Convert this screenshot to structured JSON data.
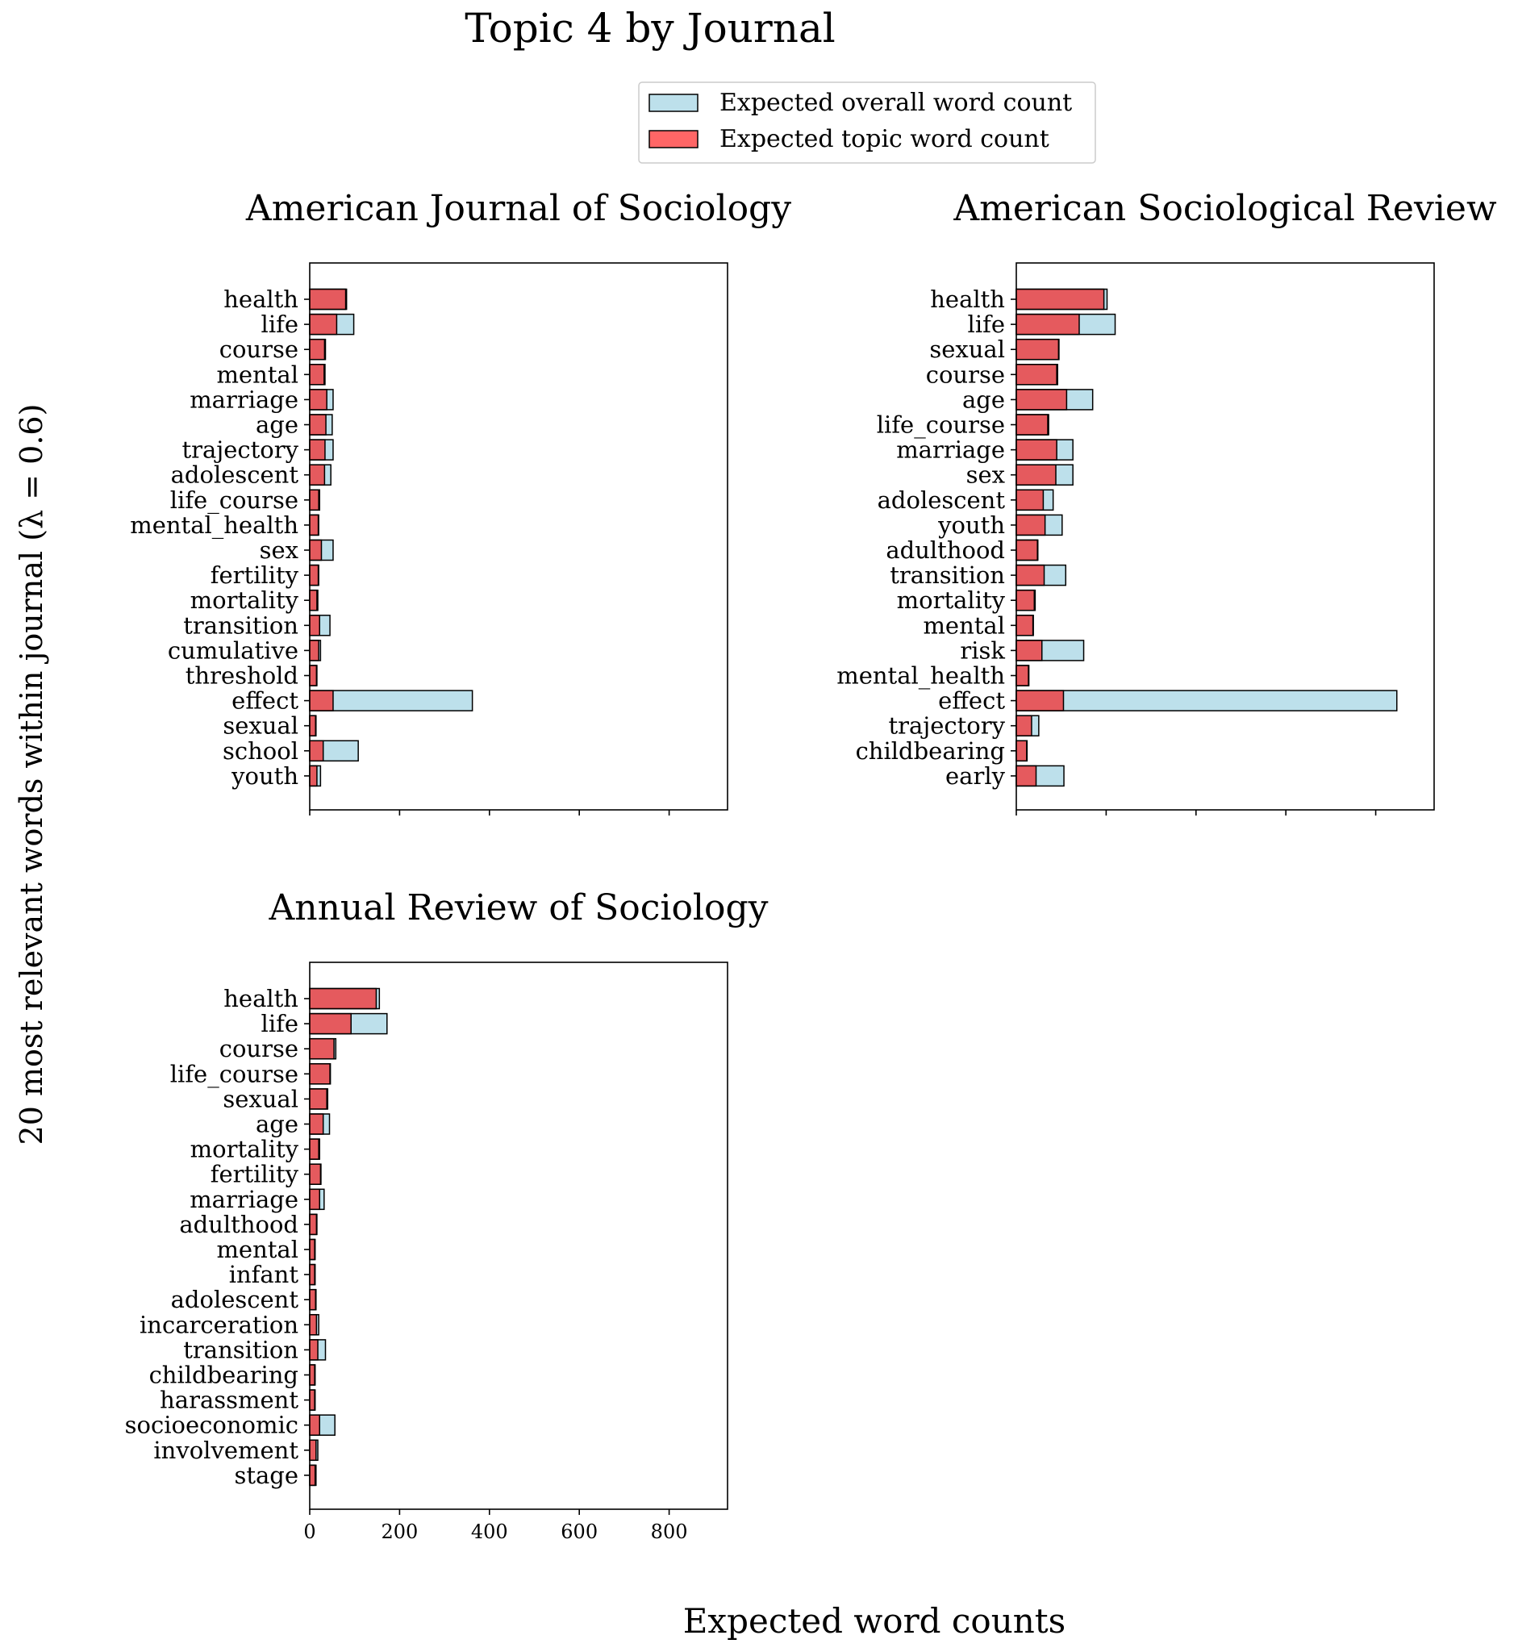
{
  "figure": {
    "title": "Topic 4 by Journal",
    "ylabel": "20 most relevant words within journal (λ =  0.6)",
    "xlabel": "Expected word counts",
    "legend": {
      "placement": "top-center",
      "items": [
        {
          "label": "Expected overall word count",
          "color": "#add8e6"
        },
        {
          "label": "Expected topic word count",
          "color": "#ff6666"
        }
      ]
    }
  },
  "chart_data": [
    {
      "type": "bar",
      "orientation": "horizontal",
      "title": "American Journal of Sociology",
      "xlim": [
        0,
        930
      ],
      "xticks": [
        0,
        200,
        400,
        600,
        800
      ],
      "show_xtick_labels": false,
      "categories": [
        "health",
        "life",
        "course",
        "mental",
        "marriage",
        "age",
        "trajectory",
        "adolescent",
        "life_course",
        "mental_health",
        "sex",
        "fertility",
        "mortality",
        "transition",
        "cumulative",
        "threshold",
        "effect",
        "sexual",
        "school",
        "youth"
      ],
      "series": [
        {
          "name": "Expected overall word count",
          "values": [
            82,
            98,
            35,
            34,
            52,
            50,
            52,
            47,
            22,
            20,
            52,
            20,
            18,
            45,
            24,
            16,
            362,
            14,
            108,
            24
          ]
        },
        {
          "name": "Expected topic word count",
          "values": [
            80,
            60,
            33,
            32,
            38,
            36,
            34,
            33,
            20,
            19,
            26,
            19,
            16,
            22,
            20,
            15,
            52,
            13,
            30,
            16
          ]
        }
      ]
    },
    {
      "type": "bar",
      "orientation": "horizontal",
      "title": "American Sociological Review",
      "xlim": [
        0,
        930
      ],
      "xticks": [
        0,
        200,
        400,
        600,
        800
      ],
      "show_xtick_labels": false,
      "categories": [
        "health",
        "life",
        "sexual",
        "course",
        "age",
        "life_course",
        "marriage",
        "sex",
        "adolescent",
        "youth",
        "adulthood",
        "transition",
        "mortality",
        "mental",
        "risk",
        "mental_health",
        "effect",
        "trajectory",
        "childbearing",
        "early"
      ],
      "series": [
        {
          "name": "Expected overall word count",
          "values": [
            202,
            220,
            95,
            92,
            170,
            72,
            126,
            126,
            82,
            102,
            48,
            110,
            42,
            38,
            150,
            28,
            847,
            50,
            24,
            106
          ]
        },
        {
          "name": "Expected topic word count",
          "values": [
            195,
            140,
            94,
            90,
            112,
            70,
            90,
            88,
            60,
            64,
            47,
            62,
            40,
            37,
            57,
            27,
            105,
            34,
            23,
            44
          ]
        }
      ]
    },
    {
      "type": "bar",
      "orientation": "horizontal",
      "title": "Annual Review of Sociology",
      "xlim": [
        0,
        930
      ],
      "xticks": [
        0,
        200,
        400,
        600,
        800
      ],
      "show_xtick_labels": true,
      "xtick_labels": [
        "0",
        "200",
        "400",
        "600",
        "800"
      ],
      "categories": [
        "health",
        "life",
        "course",
        "life_course",
        "sexual",
        "age",
        "mortality",
        "fertility",
        "marriage",
        "adulthood",
        "mental",
        "infant",
        "adolescent",
        "incarceration",
        "transition",
        "childbearing",
        "harassment",
        "socioeconomic",
        "involvement",
        "stage"
      ],
      "series": [
        {
          "name": "Expected overall word count",
          "values": [
            155,
            172,
            58,
            46,
            40,
            44,
            22,
            25,
            32,
            16,
            12,
            12,
            14,
            20,
            35,
            12,
            12,
            56,
            18,
            14
          ]
        },
        {
          "name": "Expected topic word count",
          "values": [
            148,
            92,
            54,
            45,
            38,
            30,
            20,
            24,
            22,
            15,
            11,
            11,
            13,
            15,
            18,
            11,
            11,
            22,
            14,
            12
          ]
        }
      ]
    }
  ]
}
